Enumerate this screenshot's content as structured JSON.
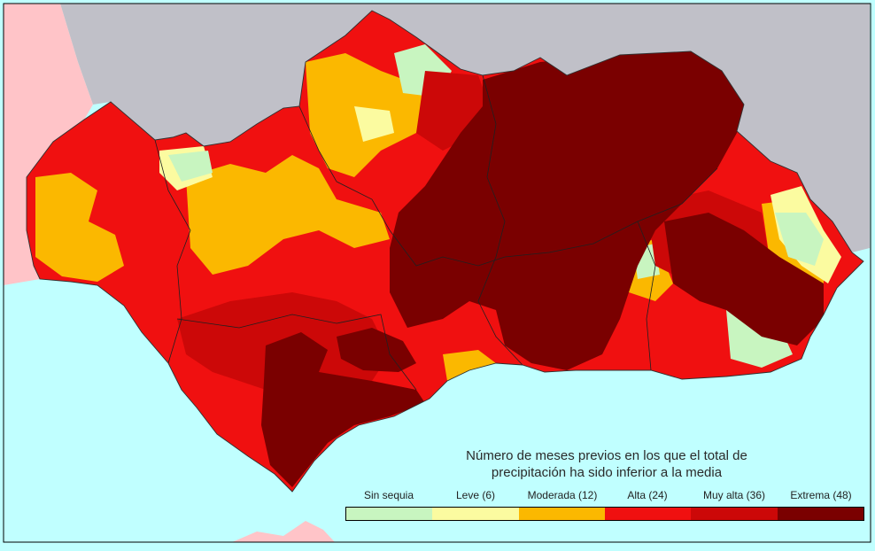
{
  "legend": {
    "title_line1": "Número de meses previos en los que el total de",
    "title_line2": "precipitación ha sido inferior a la media",
    "classes": [
      {
        "label": "Sin sequia",
        "color": "#c8f5c0"
      },
      {
        "label": "Leve (6)",
        "color": "#fbfba0"
      },
      {
        "label": "Moderada (12)",
        "color": "#fbb800"
      },
      {
        "label": "Alta (24)",
        "color": "#f01010"
      },
      {
        "label": "Muy alta (36)",
        "color": "#cc0808"
      },
      {
        "label": "Extrema (48)",
        "color": "#7a0000"
      }
    ]
  },
  "map_colors": {
    "sea": "#c0ffff",
    "neighbor_spain": "#c0c0c8",
    "portugal": "#ffc4c8",
    "morocco": "#ffc4c8",
    "frame": "#000000"
  }
}
